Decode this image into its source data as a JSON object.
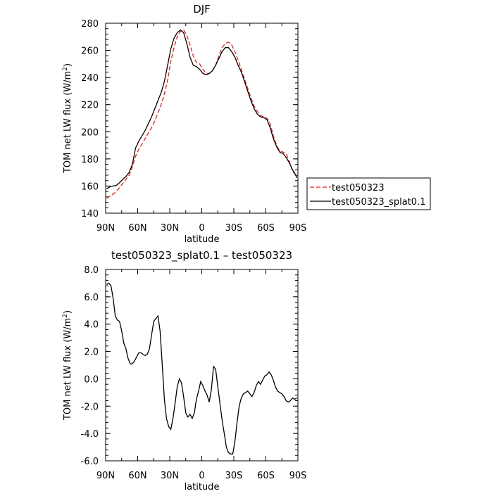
{
  "chart_data": [
    {
      "type": "line",
      "title": "DJF",
      "xlabel": "latitude",
      "ylabel": "TOM net LW flux (W/m",
      "ylabel_sup": "2",
      "ylabel_close": ")",
      "x_ticks": [
        90,
        60,
        30,
        0,
        -30,
        -60,
        -90
      ],
      "x_tick_labels": [
        "90N",
        "60N",
        "30N",
        "0",
        "30S",
        "60S",
        "90S"
      ],
      "xlim": [
        90,
        -90
      ],
      "y_ticks": [
        140,
        160,
        180,
        200,
        220,
        240,
        260,
        280
      ],
      "y_tick_labels": [
        "140",
        "160",
        "180",
        "200",
        "220",
        "240",
        "260",
        "280"
      ],
      "ylim": [
        140,
        280
      ],
      "legend": {
        "placement": "right",
        "entries": [
          "test050323",
          "test050323_splat0.1"
        ]
      },
      "series": [
        {
          "name": "test050323",
          "color": "#e0201b",
          "style": "dashed",
          "x": [
            89,
            86,
            83,
            80,
            77,
            74,
            71,
            68,
            65,
            62,
            59,
            56,
            53,
            50,
            47,
            44,
            41,
            38,
            35,
            32,
            29,
            26,
            23,
            20,
            17,
            14,
            11,
            8,
            5,
            2,
            -1,
            -4,
            -7,
            -10,
            -13,
            -16,
            -19,
            -22,
            -25,
            -28,
            -31,
            -34,
            -37,
            -40,
            -43,
            -46,
            -49,
            -52,
            -55,
            -58,
            -61,
            -64,
            -67,
            -70,
            -73,
            -76,
            -79,
            -82,
            -85,
            -88,
            -89
          ],
          "y": [
            151,
            152.5,
            154,
            156,
            159,
            162,
            165,
            168,
            174,
            182,
            187,
            191,
            195,
            199,
            203,
            208,
            214,
            220,
            228,
            238,
            252,
            262,
            270,
            274,
            275,
            271,
            264,
            256,
            251,
            250,
            246,
            243,
            243,
            245,
            249,
            256,
            262,
            265,
            266,
            264,
            259,
            253,
            246,
            239,
            232,
            225,
            219,
            215,
            212,
            211,
            210,
            206,
            197,
            190,
            186,
            185,
            184,
            178,
            171,
            168,
            167
          ]
        },
        {
          "name": "test050323_splat0.1",
          "color": "#000000",
          "style": "solid",
          "x": [
            89,
            86,
            83,
            80,
            77,
            74,
            71,
            68,
            65,
            62,
            59,
            56,
            53,
            50,
            47,
            44,
            41,
            38,
            35,
            32,
            29,
            26,
            23,
            20,
            17,
            14,
            11,
            8,
            5,
            2,
            -1,
            -4,
            -7,
            -10,
            -13,
            -16,
            -19,
            -22,
            -25,
            -28,
            -31,
            -34,
            -37,
            -40,
            -43,
            -46,
            -49,
            -52,
            -55,
            -58,
            -61,
            -64,
            -67,
            -70,
            -73,
            -76,
            -79,
            -82,
            -85,
            -88,
            -89
          ],
          "y": [
            158,
            159.5,
            160,
            160.5,
            162.5,
            165,
            167,
            170,
            176,
            188,
            193,
            197,
            201,
            206,
            211,
            217,
            223,
            229,
            237,
            249,
            261,
            269,
            273,
            275,
            273,
            265,
            255,
            249,
            248,
            246,
            243,
            242,
            243,
            245,
            249,
            254,
            259,
            262,
            262,
            259,
            255,
            249,
            244,
            237,
            230,
            223,
            217,
            213,
            211,
            210.5,
            209,
            203,
            195,
            189,
            185,
            184,
            181,
            177,
            172,
            168,
            166
          ]
        }
      ]
    },
    {
      "type": "line",
      "title": "test050323_splat0.1 – test050323",
      "xlabel": "latitude",
      "ylabel": "TOM net LW flux (W/m",
      "ylabel_sup": "2",
      "ylabel_close": ")",
      "x_ticks": [
        90,
        60,
        30,
        0,
        -30,
        -60,
        -90
      ],
      "x_tick_labels": [
        "90N",
        "60N",
        "30N",
        "0",
        "30S",
        "60S",
        "90S"
      ],
      "xlim": [
        90,
        -90
      ],
      "y_ticks": [
        -6,
        -4,
        -2,
        0,
        2,
        4,
        6,
        8
      ],
      "y_tick_labels": [
        "-6.0",
        "-4.0",
        "-2.0",
        "0.0",
        "2.0",
        "4.0",
        "6.0",
        "8.0"
      ],
      "ylim": [
        -6,
        8
      ],
      "series": [
        {
          "color": "#000000",
          "style": "solid",
          "x": [
            89,
            87,
            85,
            83,
            81,
            79,
            77,
            75,
            73,
            71,
            69,
            67,
            65,
            63,
            61,
            59,
            57,
            55,
            53,
            51,
            49,
            47,
            45,
            43,
            41,
            39,
            37,
            35,
            33,
            31,
            29,
            27,
            25,
            23,
            21,
            19,
            17,
            15,
            13,
            11,
            9,
            7,
            5,
            3,
            1,
            -1,
            -3,
            -5,
            -7,
            -9,
            -11,
            -13,
            -15,
            -17,
            -19,
            -21,
            -23,
            -25,
            -27,
            -29,
            -31,
            -33,
            -35,
            -37,
            -39,
            -41,
            -43,
            -45,
            -47,
            -49,
            -51,
            -53,
            -55,
            -57,
            -59,
            -61,
            -63,
            -65,
            -67,
            -69,
            -71,
            -73,
            -75,
            -77,
            -79,
            -81,
            -83,
            -85,
            -87,
            -89
          ],
          "y": [
            6.9,
            7.0,
            6.8,
            5.9,
            4.6,
            4.3,
            4.2,
            3.5,
            2.6,
            2.2,
            1.5,
            1.1,
            1.1,
            1.3,
            1.6,
            1.9,
            1.9,
            1.8,
            1.7,
            1.8,
            2.2,
            3.2,
            4.2,
            4.4,
            4.6,
            3.5,
            1.0,
            -1.5,
            -2.9,
            -3.5,
            -3.7,
            -2.9,
            -1.8,
            -0.6,
            0.0,
            -0.3,
            -1.3,
            -2.5,
            -2.8,
            -2.6,
            -2.9,
            -2.5,
            -1.5,
            -0.9,
            -0.2,
            -0.5,
            -0.9,
            -1.2,
            -1.7,
            -0.8,
            0.9,
            0.7,
            -0.6,
            -1.8,
            -3.0,
            -4.0,
            -5.0,
            -5.4,
            -5.5,
            -5.5,
            -4.6,
            -3.2,
            -2.0,
            -1.4,
            -1.1,
            -1.0,
            -0.9,
            -1.1,
            -1.3,
            -1.0,
            -0.5,
            -0.2,
            -0.4,
            -0.1,
            0.2,
            0.3,
            0.5,
            0.3,
            -0.1,
            -0.6,
            -0.9,
            -1.0,
            -1.1,
            -1.3,
            -1.6,
            -1.7,
            -1.6,
            -1.4,
            -1.5,
            -1.4
          ]
        }
      ]
    }
  ]
}
